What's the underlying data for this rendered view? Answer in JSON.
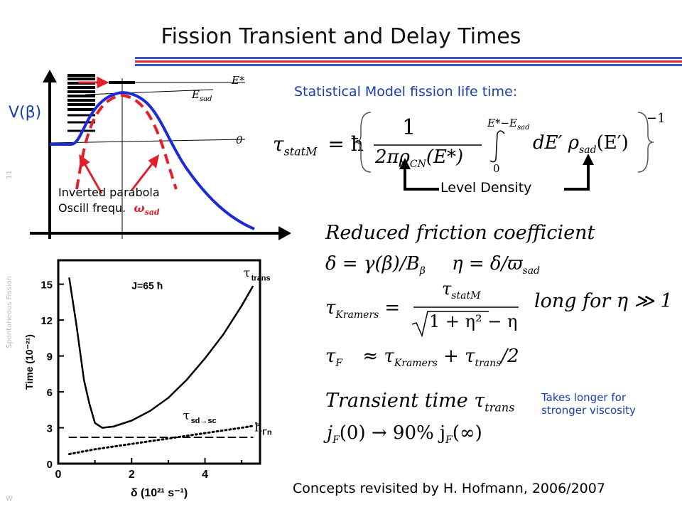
{
  "slide": {
    "title": "Fission Transient and Delay Times",
    "side_number": "11",
    "side_topic": "Spontaneous Fission",
    "side_footer": "W",
    "colors": {
      "line_top": "#3a55c8",
      "line_bottom": "#d8272e",
      "blue_text": "#1a3fb0",
      "curve": "#1a2bd8",
      "dashed": "#e0202a"
    }
  },
  "potential_diagram": {
    "y_label": "V(β)",
    "level_labels": {
      "estar": "E*",
      "esad": "E",
      "esad_sub": "sad",
      "zero": "0"
    },
    "annotation_line1": "Inverted parabola",
    "annotation_line2": "Oscill frequ.",
    "omega_symbol": "ω",
    "omega_sub": "sad"
  },
  "stat_model": {
    "title": "Statistical Model fission life time:",
    "level_density": "Level Density",
    "tau": "τ",
    "tau_sub": "statM",
    "hbar": "= ħ",
    "numerator": "1",
    "denominator": "2πρ",
    "den_sub": "CN",
    "den_arg": "(E*)",
    "int_upper": "E*−E",
    "int_upper_sub": "sad",
    "int_lower": "0",
    "integrand": "dE′ ρ",
    "integrand_sub": "sad",
    "integrand_arg": "(E′)",
    "power": "−1"
  },
  "friction": {
    "heading": "Reduced friction coefficient",
    "delta_eq": "δ = γ(β)/B",
    "delta_sub": "β",
    "eta_eq": "η = δ/ϖ",
    "eta_sub": "sad",
    "kramers_lhs": "τ",
    "kramers_lhs_sub": "Kramers",
    "kramers_num": "τ",
    "kramers_num_sub": "statM",
    "kramers_den": "1 + η² − η",
    "long_for": "long for η ≫ 1",
    "tauF": "τ",
    "tauF_sub": "F",
    "tauF_rhs1": "≈ τ",
    "tauF_rhs1_sub": "Kramers",
    "tauF_rhs2": "+ τ",
    "tauF_rhs2_sub": "trans",
    "tauF_rhs3": "/2"
  },
  "transient": {
    "heading": "Transient time τ",
    "heading_sub": "trans",
    "jf_eq": "j",
    "jf_sub": "F",
    "jf_rest": "(0) → 90% j",
    "jf_sub2": "F",
    "jf_rest2": "(∞)",
    "note_line1": "Takes longer for",
    "note_line2": "stronger viscosity"
  },
  "footer": {
    "concepts": "Concepts revisited by H. Hofmann, 2006/2007"
  },
  "chart_data": {
    "type": "line",
    "xlabel": "δ (10²¹ s⁻¹)",
    "ylabel": "Time (10⁻²¹)",
    "annotation": "J=65 ħ",
    "xlim": [
      0,
      5.5
    ],
    "ylim": [
      0,
      17
    ],
    "x_ticks": [
      "0",
      "2",
      "4"
    ],
    "x_minor": [
      1,
      3,
      5
    ],
    "y_ticks": [
      "0",
      "3",
      "6",
      "9",
      "12",
      "15"
    ],
    "series": [
      {
        "name": "τ_trans",
        "label": "τ",
        "label_sub": "trans",
        "style": "solid",
        "x": [
          0.3,
          0.5,
          0.7,
          0.85,
          1.0,
          1.2,
          1.5,
          2.0,
          2.5,
          3.0,
          3.5,
          4.0,
          4.5,
          5.0,
          5.3
        ],
        "y": [
          15.5,
          11.5,
          7.0,
          5.0,
          3.4,
          3.0,
          3.1,
          3.6,
          4.4,
          5.5,
          7.0,
          8.8,
          10.8,
          13.2,
          14.8
        ]
      },
      {
        "name": "τ_sd→sc",
        "label": "τ",
        "label_sub": "sd→sc",
        "style": "dotted",
        "x": [
          0.3,
          1,
          2,
          3,
          4,
          5,
          5.3
        ],
        "y": [
          0.8,
          1.2,
          1.65,
          2.1,
          2.55,
          3.0,
          3.15
        ]
      },
      {
        "name": "ħ/Γn",
        "label": "ħ",
        "label_sub": "Γn",
        "style": "dashed",
        "x": [
          0.3,
          5.3
        ],
        "y": [
          2.2,
          2.2
        ]
      }
    ]
  }
}
